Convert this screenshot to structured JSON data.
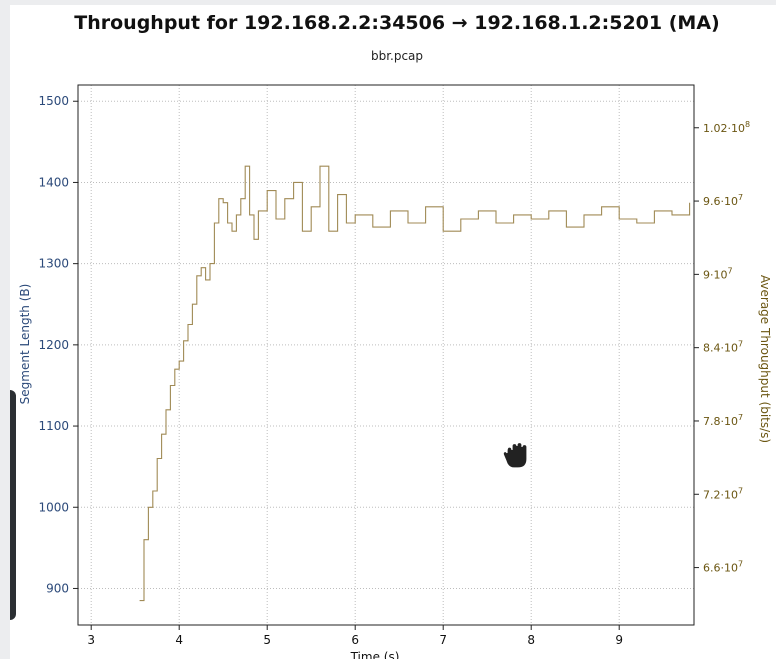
{
  "chart_data": {
    "type": "line",
    "title": "Throughput for 192.168.2.2:34506 → 192.168.1.2:5201 (MA)",
    "subtitle": "bbr.pcap",
    "xlabel": "Time (s)",
    "ylabel_left": "Segment Length (B)",
    "ylabel_right": "Average Throughput (bits/s)",
    "xlim": [
      2.85,
      9.85
    ],
    "ylim_left": [
      855,
      1520
    ],
    "ylim_right": [
      61300000,
      105500000
    ],
    "x_ticks": [
      "3",
      "4",
      "5",
      "6",
      "7",
      "8",
      "9"
    ],
    "y_left_ticks": [
      "900",
      "1000",
      "1100",
      "1200",
      "1300",
      "1400",
      "1500"
    ],
    "y_right_ticks": [
      {
        "mantissa": "6.6·10",
        "exp": "7",
        "value": 66000000
      },
      {
        "mantissa": "7.2·10",
        "exp": "7",
        "value": 72000000
      },
      {
        "mantissa": "7.8·10",
        "exp": "7",
        "value": 78000000
      },
      {
        "mantissa": "8.4·10",
        "exp": "7",
        "value": 84000000
      },
      {
        "mantissa": "9·10",
        "exp": "7",
        "value": 90000000
      },
      {
        "mantissa": "9.6·10",
        "exp": "7",
        "value": 96000000
      },
      {
        "mantissa": "1.02·10",
        "exp": "8",
        "value": 102000000
      }
    ],
    "grid": true,
    "series": [
      {
        "axis": "left",
        "color": "#a08a55",
        "x": [
          3.55,
          3.6,
          3.65,
          3.7,
          3.75,
          3.8,
          3.85,
          3.9,
          3.95,
          4.0,
          4.05,
          4.1,
          4.15,
          4.2,
          4.25,
          4.3,
          4.35,
          4.4,
          4.45,
          4.5,
          4.55,
          4.6,
          4.65,
          4.7,
          4.75,
          4.8,
          4.85,
          4.9,
          5.0,
          5.1,
          5.2,
          5.3,
          5.4,
          5.5,
          5.6,
          5.7,
          5.8,
          5.9,
          6.0,
          6.2,
          6.4,
          6.6,
          6.8,
          7.0,
          7.2,
          7.4,
          7.6,
          7.8,
          8.0,
          8.2,
          8.4,
          8.6,
          8.8,
          9.0,
          9.2,
          9.4,
          9.6,
          9.8
        ],
        "y": [
          885,
          960,
          1000,
          1020,
          1060,
          1090,
          1120,
          1150,
          1170,
          1180,
          1205,
          1225,
          1250,
          1285,
          1295,
          1280,
          1300,
          1350,
          1380,
          1375,
          1350,
          1340,
          1360,
          1380,
          1420,
          1360,
          1330,
          1365,
          1390,
          1355,
          1380,
          1400,
          1340,
          1370,
          1420,
          1340,
          1385,
          1350,
          1360,
          1345,
          1365,
          1350,
          1370,
          1340,
          1355,
          1365,
          1350,
          1360,
          1355,
          1365,
          1345,
          1360,
          1370,
          1355,
          1350,
          1365,
          1360,
          1375
        ]
      }
    ]
  },
  "overlay": {
    "cursor_icon": "grab-hand-icon"
  }
}
